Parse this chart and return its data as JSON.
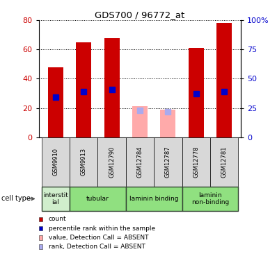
{
  "title": "GDS700 / 96772_at",
  "samples": [
    "GSM9910",
    "GSM9913",
    "GSM12790",
    "GSM12784",
    "GSM12787",
    "GSM12778",
    "GSM12781"
  ],
  "count_values": [
    48,
    65,
    68,
    null,
    null,
    61,
    78
  ],
  "count_absent": [
    null,
    null,
    null,
    21,
    19,
    null,
    null
  ],
  "rank_values": [
    34,
    39,
    41,
    null,
    null,
    37,
    39
  ],
  "rank_absent": [
    null,
    null,
    null,
    23,
    22,
    null,
    null
  ],
  "ylim_left": [
    0,
    80
  ],
  "ylim_right": [
    0,
    100
  ],
  "yticks_left": [
    0,
    20,
    40,
    60,
    80
  ],
  "yticks_right": [
    0,
    25,
    50,
    75,
    100
  ],
  "ytick_labels_right": [
    "0",
    "25",
    "50",
    "75",
    "100%"
  ],
  "cell_types": [
    {
      "label": "interstit\nial",
      "start": 0,
      "end": 1,
      "color": "#d0eecc"
    },
    {
      "label": "tubular",
      "start": 1,
      "end": 3,
      "color": "#90e080"
    },
    {
      "label": "laminin binding",
      "start": 3,
      "end": 5,
      "color": "#90e080"
    },
    {
      "label": "laminin\nnon-binding",
      "start": 5,
      "end": 7,
      "color": "#90e080"
    }
  ],
  "bar_color_red": "#cc0000",
  "bar_color_pink": "#ffaaaa",
  "rank_color_blue": "#0000cc",
  "rank_color_light_blue": "#aaaaee",
  "bar_width": 0.55,
  "rank_marker_size": 6,
  "bg_color": "#ffffff",
  "tick_label_color_left": "#cc0000",
  "tick_label_color_right": "#0000cc",
  "sample_box_color": "#d8d8d8",
  "legend_items": [
    {
      "color": "#cc0000",
      "label": "count"
    },
    {
      "color": "#0000cc",
      "label": "percentile rank within the sample"
    },
    {
      "color": "#ffaaaa",
      "label": "value, Detection Call = ABSENT"
    },
    {
      "color": "#aaaaee",
      "label": "rank, Detection Call = ABSENT"
    }
  ]
}
